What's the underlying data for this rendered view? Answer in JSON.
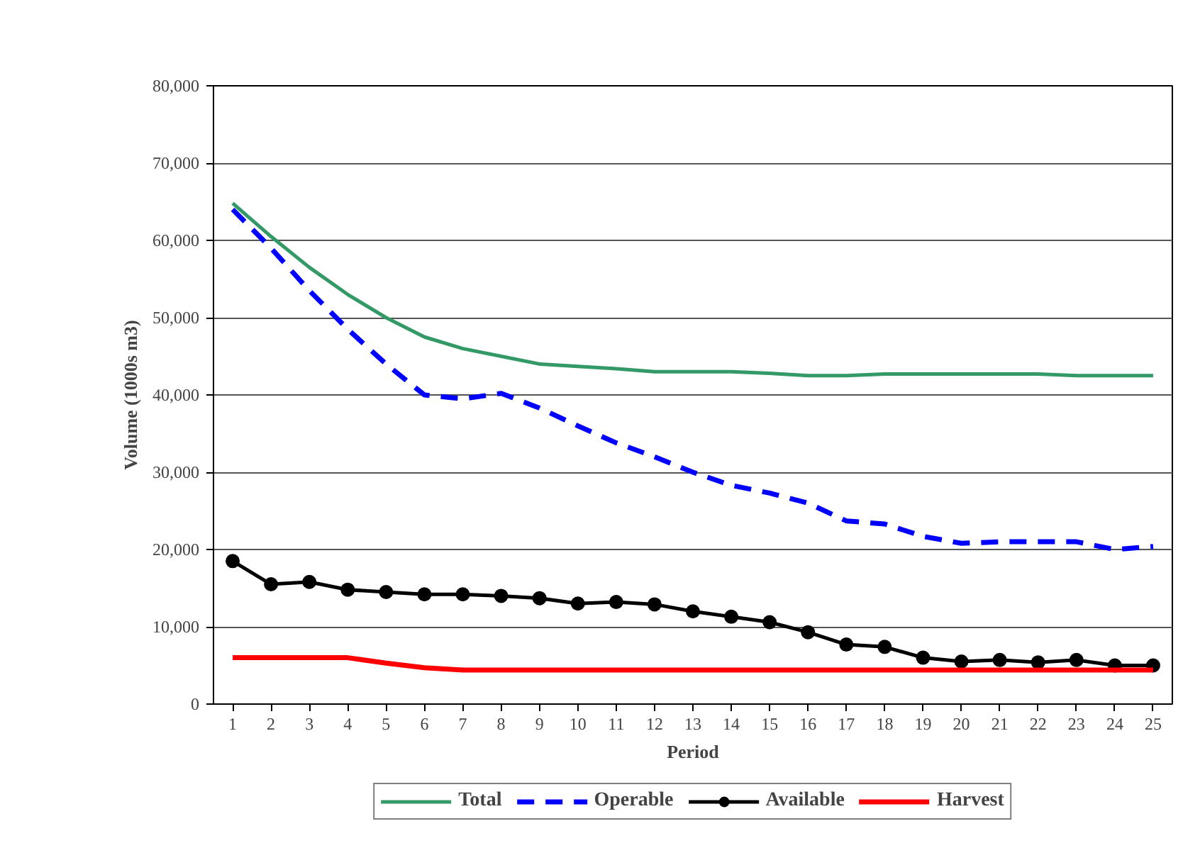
{
  "chart_data": {
    "type": "line",
    "xlabel": "Period",
    "ylabel": "Volume (1000s m3)",
    "x": [
      1,
      2,
      3,
      4,
      5,
      6,
      7,
      8,
      9,
      10,
      11,
      12,
      13,
      14,
      15,
      16,
      17,
      18,
      19,
      20,
      21,
      22,
      23,
      24,
      25
    ],
    "xlim": [
      0.5,
      25.5
    ],
    "xticks": [
      1,
      2,
      3,
      4,
      5,
      6,
      7,
      8,
      9,
      10,
      11,
      12,
      13,
      14,
      15,
      16,
      17,
      18,
      19,
      20,
      21,
      22,
      23,
      24,
      25
    ],
    "ylim": [
      0,
      80000
    ],
    "yticks": [
      {
        "value": 0,
        "label": "0"
      },
      {
        "value": 10000,
        "label": "10,000"
      },
      {
        "value": 20000,
        "label": "20,000"
      },
      {
        "value": 30000,
        "label": "30,000"
      },
      {
        "value": 40000,
        "label": "40,000"
      },
      {
        "value": 50000,
        "label": "50,000"
      },
      {
        "value": 60000,
        "label": "60,000"
      },
      {
        "value": 70000,
        "label": "70,000"
      },
      {
        "value": 80000,
        "label": "80,000"
      }
    ],
    "grid": "y",
    "legend": "bottom",
    "series": [
      {
        "name": "Total",
        "color": "#339966",
        "line_style": "solid",
        "marker": "none",
        "values": [
          64800,
          60500,
          56500,
          53000,
          50000,
          47500,
          46000,
          45000,
          44000,
          43700,
          43400,
          43000,
          43000,
          43000,
          42800,
          42500,
          42500,
          42700,
          42700,
          42700,
          42700,
          42700,
          42500,
          42500,
          42500
        ]
      },
      {
        "name": "Operable",
        "color": "#0000ff",
        "line_style": "dashed",
        "marker": "none",
        "values": [
          64000,
          59000,
          53500,
          48500,
          44000,
          40000,
          39500,
          40200,
          38300,
          36000,
          33800,
          32000,
          30000,
          28300,
          27300,
          26000,
          23700,
          23300,
          21700,
          20800,
          21000,
          21000,
          21000,
          20000,
          20400
        ]
      },
      {
        "name": "Available",
        "color": "#000000",
        "line_style": "solid",
        "marker": "circle",
        "values": [
          18500,
          15500,
          15800,
          14800,
          14500,
          14200,
          14200,
          14000,
          13700,
          13000,
          13200,
          12900,
          12000,
          11300,
          10600,
          9300,
          7700,
          7400,
          6000,
          5500,
          5700,
          5400,
          5700,
          5000,
          5000
        ]
      },
      {
        "name": "Harvest",
        "color": "#ff0000",
        "line_style": "solid",
        "marker": "none",
        "values": [
          6000,
          6000,
          6000,
          6000,
          5300,
          4700,
          4400,
          4400,
          4400,
          4400,
          4400,
          4400,
          4400,
          4400,
          4400,
          4400,
          4400,
          4400,
          4400,
          4400,
          4400,
          4400,
          4400,
          4400,
          4400
        ]
      }
    ]
  }
}
